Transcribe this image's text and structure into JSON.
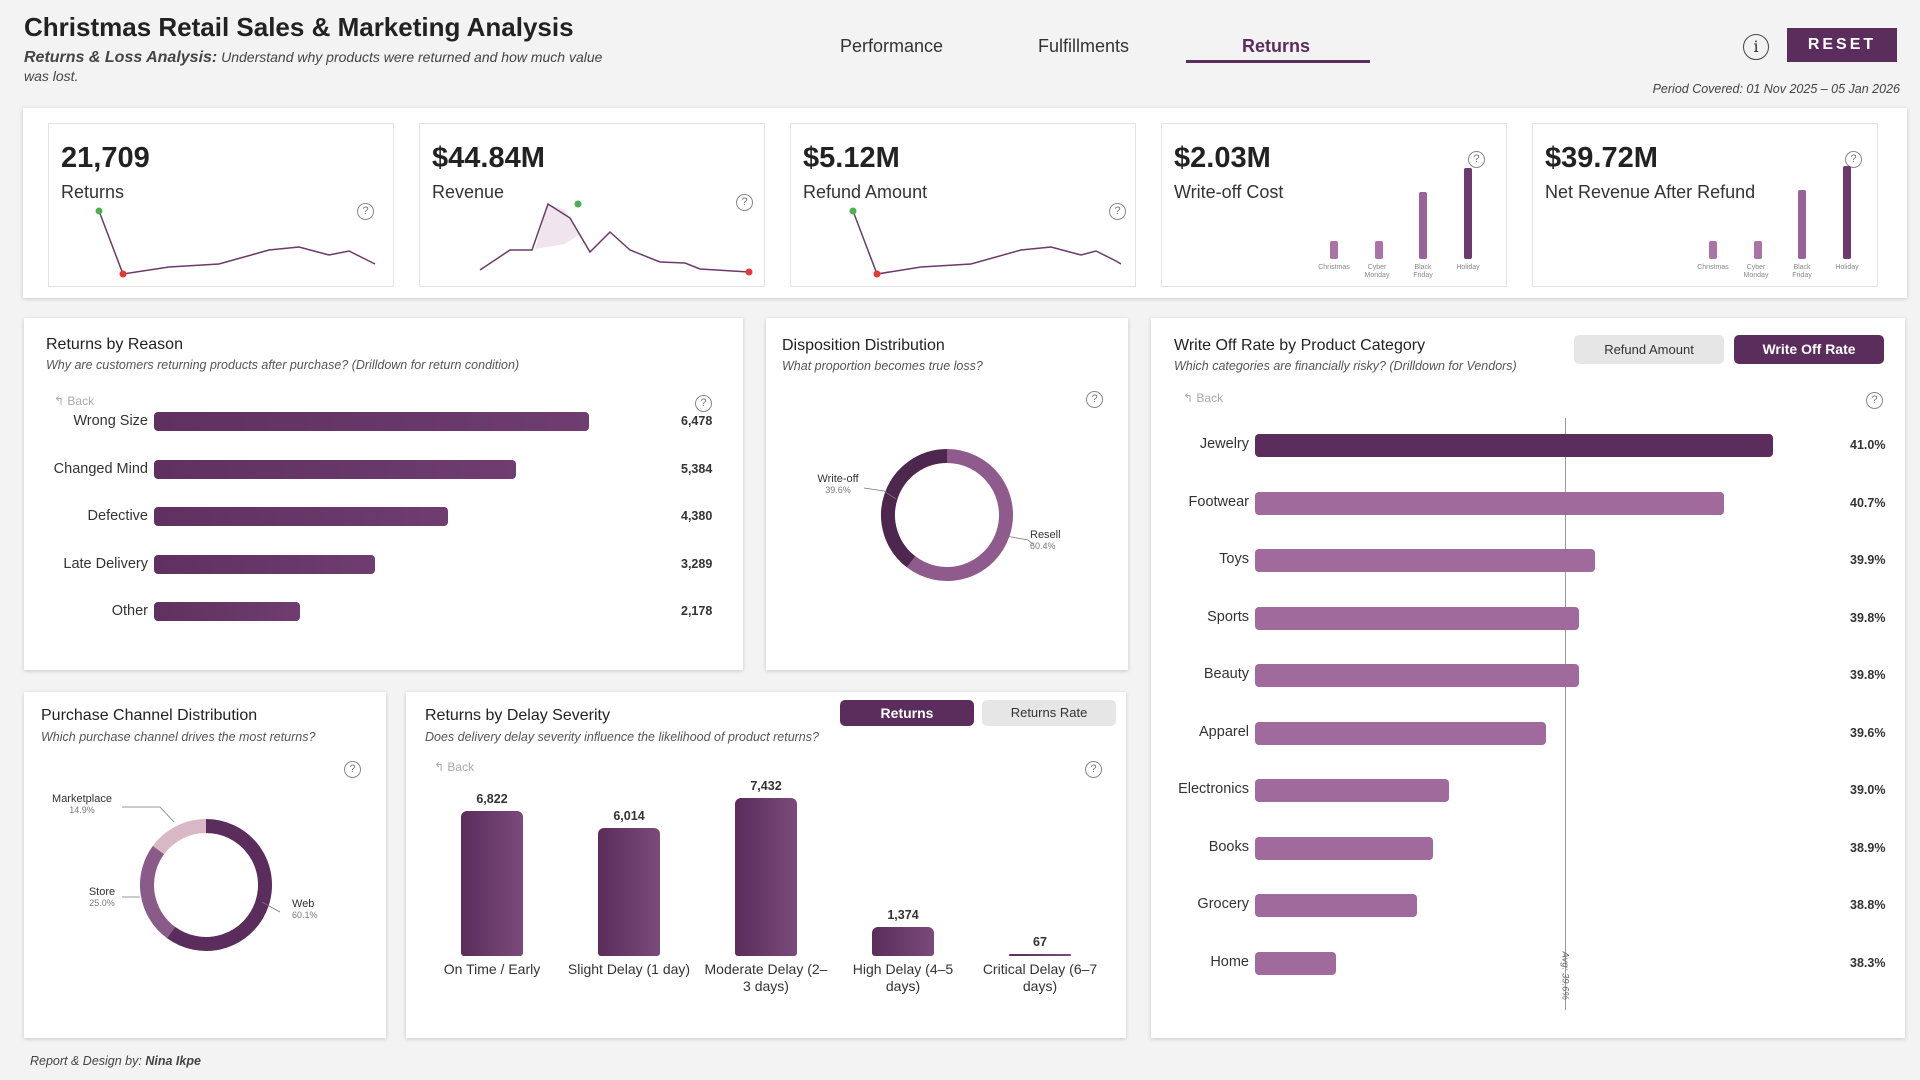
{
  "header": {
    "title": "Christmas Retail Sales & Marketing Analysis",
    "subtitle_strong": "Returns & Loss Analysis:",
    "subtitle_text": "Understand why products were returned and how much value",
    "subtitle_text_2": "was lost.",
    "period": "Period Covered: 01 Nov 2025 – 05 Jan 2026",
    "reset_label": "RESET",
    "info_icon": "i",
    "tabs": [
      "Performance",
      "Fulfillments",
      "Returns"
    ],
    "active_tab": "Returns",
    "accent": "#5b2d5c"
  },
  "kpis": [
    {
      "value": "21,709",
      "label": "Returns"
    },
    {
      "value": "$44.84M",
      "label": "Revenue"
    },
    {
      "value": "$5.12M",
      "label": "Refund Amount"
    },
    {
      "value": "$2.03M",
      "label": "Write-off Cost",
      "mini_categories": [
        "Christmas",
        "Cyber Monday",
        "Black Friday",
        "Holiday"
      ]
    },
    {
      "value": "$39.72M",
      "label": "Net Revenue After Refund",
      "mini_categories": [
        "Christmas",
        "Cyber Monday",
        "Black Friday",
        "Holiday"
      ]
    }
  ],
  "returns_by_reason": {
    "title": "Returns by Reason",
    "subtitle": "Why are customers returning products after purchase? (Drilldown for return condition)",
    "back": "Back",
    "chart_data": {
      "type": "bar",
      "categories": [
        "Wrong Size",
        "Changed Mind",
        "Defective",
        "Late Delivery",
        "Other"
      ],
      "values": [
        6478,
        5384,
        4380,
        3289,
        2178
      ],
      "labels": [
        "6,478",
        "5,384",
        "4,380",
        "3,289",
        "2,178"
      ]
    }
  },
  "disposition": {
    "title": "Disposition Distribution",
    "subtitle": "What proportion becomes true loss?",
    "chart_data": {
      "type": "pie",
      "categories": [
        "Write-off",
        "Resell"
      ],
      "values": [
        39.6,
        60.4
      ],
      "labels": [
        "39.6%",
        "60.4%"
      ]
    }
  },
  "writeoff": {
    "title": "Write Off Rate by Product Category",
    "subtitle": "Which categories are financially risky? (Drilldown for Vendors)",
    "back": "Back",
    "toggle_1": "Refund Amount",
    "toggle_2": "Write Off Rate",
    "avg_label": "Avg: 39.6%",
    "chart_data": {
      "type": "bar",
      "categories": [
        "Jewelry",
        "Footwear",
        "Toys",
        "Sports",
        "Beauty",
        "Apparel",
        "Electronics",
        "Books",
        "Grocery",
        "Home"
      ],
      "values": [
        41.0,
        40.7,
        39.9,
        39.8,
        39.8,
        39.6,
        39.0,
        38.9,
        38.8,
        38.3
      ],
      "labels": [
        "41.0%",
        "40.7%",
        "39.9%",
        "39.8%",
        "39.8%",
        "39.6%",
        "39.0%",
        "38.9%",
        "38.8%",
        "38.3%"
      ],
      "average": 39.6
    }
  },
  "channel": {
    "title": "Purchase Channel Distribution",
    "subtitle": "Which purchase channel drives the most returns?",
    "chart_data": {
      "type": "pie",
      "categories": [
        "Web",
        "Store",
        "Marketplace"
      ],
      "values": [
        60.1,
        25.0,
        14.9
      ],
      "labels": [
        "60.1%",
        "25.0%",
        "14.9%"
      ]
    }
  },
  "delay": {
    "title": "Returns by Delay Severity",
    "subtitle": "Does delivery delay severity influence the likelihood of product returns?",
    "back": "Back",
    "toggle_1": "Returns",
    "toggle_2": "Returns Rate",
    "chart_data": {
      "type": "bar",
      "categories": [
        "On Time / Early",
        "Slight Delay (1 day)",
        "Moderate Delay (2–3 days)",
        "High Delay (4–5 days)",
        "Critical Delay (6–7 days)"
      ],
      "values": [
        6822,
        6014,
        7432,
        1374,
        67
      ],
      "labels": [
        "6,822",
        "6,014",
        "7,432",
        "1,374",
        "67"
      ]
    }
  },
  "footer": {
    "credit_prefix": "Report & Design by:",
    "credit_name": "Nina Ikpe"
  }
}
